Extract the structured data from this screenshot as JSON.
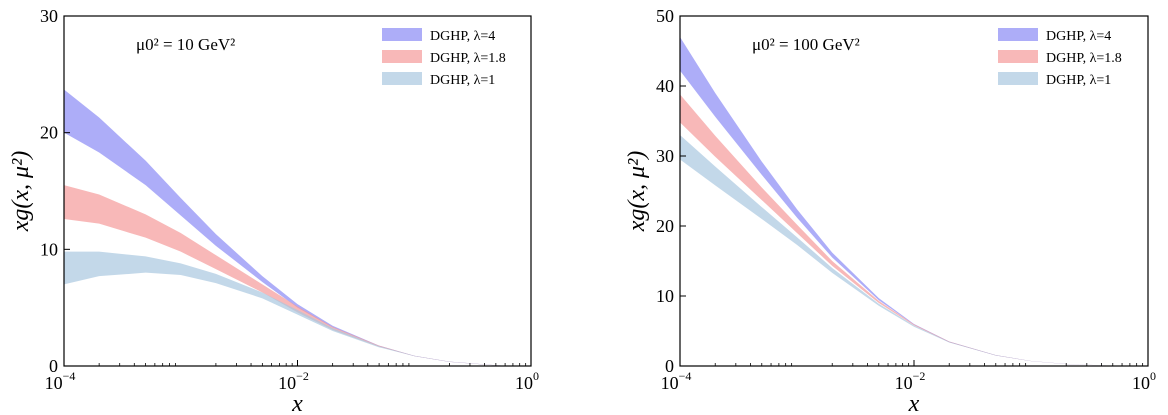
{
  "chart_data": [
    {
      "type": "area",
      "annotation": "μ0² = 10 GeV²",
      "xlabel": "x",
      "ylabel": "xg(x, μ²)",
      "xscale": "log",
      "xlim": [
        0.0001,
        1
      ],
      "ylim": [
        0,
        30
      ],
      "xticks": [
        {
          "base": "10",
          "exp": "−4"
        },
        {
          "base": "10",
          "exp": "−2"
        },
        {
          "base": "10",
          "exp": "0"
        }
      ],
      "yticks": [
        "0",
        "10",
        "20",
        "30"
      ],
      "legend_position": "top-right",
      "x": [
        0.0001,
        0.0002,
        0.0005,
        0.001,
        0.002,
        0.005,
        0.01,
        0.02,
        0.05,
        0.1,
        0.2,
        0.5,
        0.7
      ],
      "series": [
        {
          "name": "DGHP, λ=4",
          "color": "#8a8af5",
          "lower": [
            20.0,
            18.3,
            15.5,
            12.9,
            10.3,
            7.2,
            5.0,
            3.3,
            1.7,
            0.85,
            0.35,
            0.05,
            0.0
          ],
          "upper": [
            23.7,
            21.3,
            17.6,
            14.4,
            11.3,
            7.7,
            5.3,
            3.45,
            1.75,
            0.88,
            0.37,
            0.06,
            0.0
          ]
        },
        {
          "name": "DGHP, λ=1.8",
          "color": "#f59a9a",
          "lower": [
            12.6,
            12.2,
            11.0,
            9.8,
            8.3,
            6.3,
            4.6,
            3.1,
            1.65,
            0.85,
            0.35,
            0.05,
            0.0
          ],
          "upper": [
            15.5,
            14.7,
            13.0,
            11.4,
            9.5,
            7.0,
            5.1,
            3.35,
            1.75,
            0.88,
            0.37,
            0.06,
            0.0
          ]
        },
        {
          "name": "DGHP, λ=1",
          "color": "#a9c8df",
          "lower": [
            7.0,
            7.7,
            8.0,
            7.8,
            7.1,
            5.8,
            4.4,
            3.0,
            1.6,
            0.85,
            0.35,
            0.05,
            0.0
          ],
          "upper": [
            9.8,
            9.8,
            9.4,
            8.8,
            7.9,
            6.3,
            4.8,
            3.25,
            1.7,
            0.88,
            0.37,
            0.06,
            0.0
          ]
        }
      ]
    },
    {
      "type": "area",
      "annotation": "μ0² = 100 GeV²",
      "xlabel": "x",
      "ylabel": "xg(x, μ²)",
      "xscale": "log",
      "xlim": [
        0.0001,
        1
      ],
      "ylim": [
        0,
        50
      ],
      "xticks": [
        {
          "base": "10",
          "exp": "−4"
        },
        {
          "base": "10",
          "exp": "−2"
        },
        {
          "base": "10",
          "exp": "0"
        }
      ],
      "yticks": [
        "0",
        "10",
        "20",
        "30",
        "40",
        "50"
      ],
      "legend_position": "top-right",
      "x": [
        0.0001,
        0.0002,
        0.0005,
        0.001,
        0.002,
        0.005,
        0.01,
        0.02,
        0.05,
        0.1,
        0.2,
        0.5,
        0.7
      ],
      "series": [
        {
          "name": "DGHP, λ=4",
          "color": "#8a8af5",
          "lower": [
            42.2,
            35.6,
            27.3,
            21.2,
            15.5,
            9.4,
            5.9,
            3.4,
            1.5,
            0.7,
            0.27,
            0.03,
            0.0
          ],
          "upper": [
            47.0,
            39.0,
            29.2,
            22.4,
            16.2,
            9.7,
            6.0,
            3.5,
            1.55,
            0.72,
            0.28,
            0.04,
            0.0
          ]
        },
        {
          "name": "DGHP, λ=1.8",
          "color": "#f59a9a",
          "lower": [
            34.8,
            29.9,
            23.7,
            19.0,
            14.3,
            9.0,
            5.8,
            3.4,
            1.5,
            0.7,
            0.27,
            0.03,
            0.0
          ],
          "upper": [
            38.8,
            32.9,
            25.5,
            20.2,
            15.0,
            9.3,
            5.95,
            3.5,
            1.55,
            0.72,
            0.28,
            0.04,
            0.0
          ]
        },
        {
          "name": "DGHP, λ=1",
          "color": "#a9c8df",
          "lower": [
            29.5,
            25.8,
            21.0,
            17.3,
            13.3,
            8.6,
            5.6,
            3.35,
            1.5,
            0.7,
            0.27,
            0.03,
            0.0
          ],
          "upper": [
            33.0,
            28.5,
            22.7,
            18.4,
            14.0,
            8.9,
            5.8,
            3.45,
            1.55,
            0.72,
            0.28,
            0.04,
            0.0
          ]
        }
      ]
    }
  ]
}
